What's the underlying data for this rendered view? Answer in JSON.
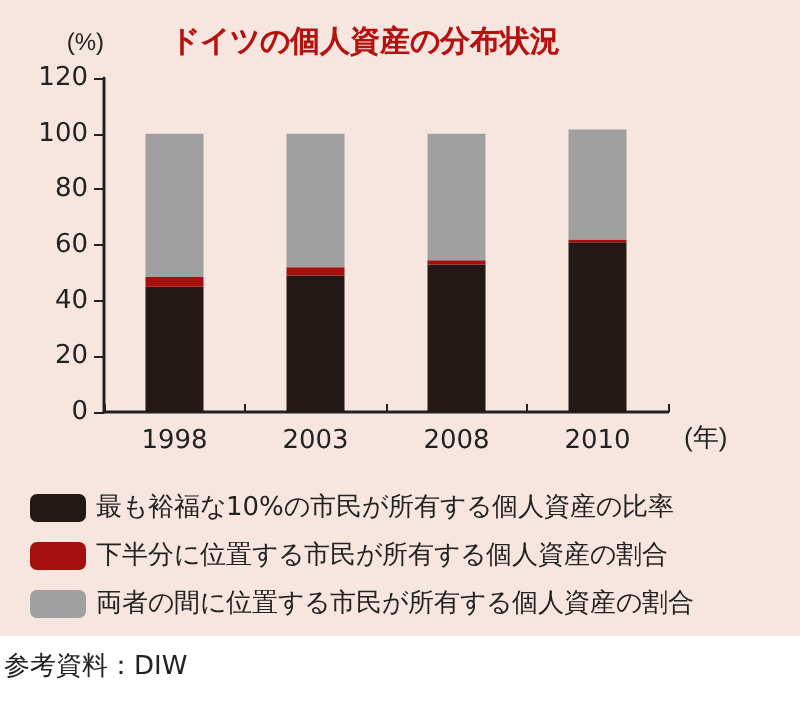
{
  "chart_data": {
    "type": "bar",
    "title": "ドイツの個人資産の分布状況",
    "ylabel": "(%)",
    "xlabel": "(年)",
    "categories": [
      "1998",
      "2003",
      "2008",
      "2010"
    ],
    "series": [
      {
        "name": "最も裕福な10%の市民が所有する個人資産の比率",
        "color": "#231815",
        "values": [
          45,
          49,
          53,
          61
        ]
      },
      {
        "name": "下半分に位置する市民が所有する個人資産の割合",
        "color": "#a50f0c",
        "values": [
          3.5,
          3,
          1.5,
          1
        ]
      },
      {
        "name": "両者の間に位置する市民が所有する個人資産の割合",
        "color": "#a0a0a0",
        "values": [
          51.5,
          48,
          45.5,
          39.5
        ]
      }
    ],
    "stacked": true,
    "ylim": [
      0,
      120
    ],
    "yticks": [
      0,
      20,
      40,
      60,
      80,
      100,
      120
    ],
    "grid": false,
    "legend": "bottom",
    "annotations": [
      "参考資料：DIW"
    ]
  }
}
